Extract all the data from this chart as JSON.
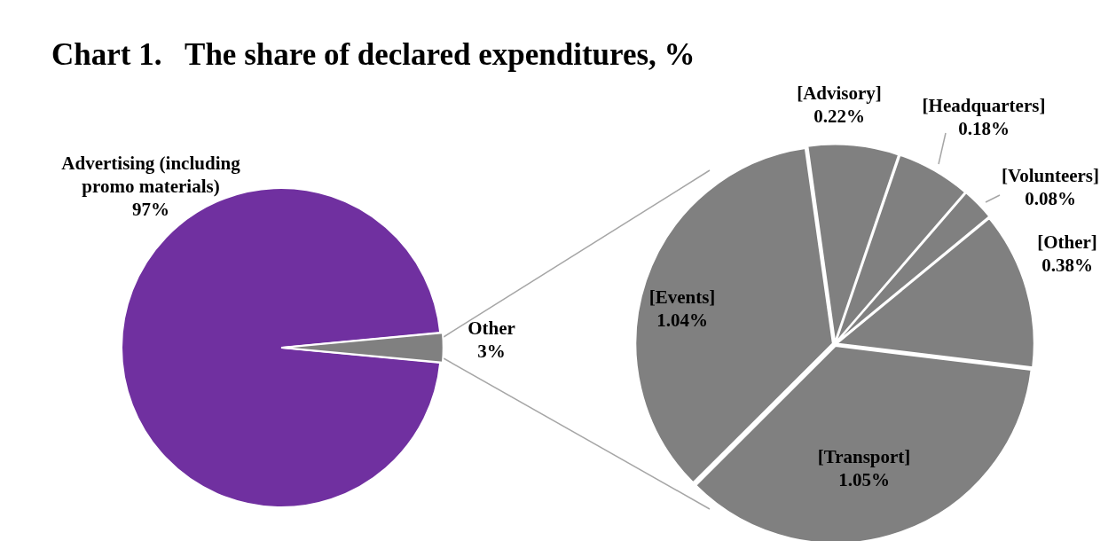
{
  "chart_data": [
    {
      "type": "pie",
      "title": "Chart 1.   The share of declared expenditures, %",
      "categories": [
        "Advertising (including promo materials)",
        "Other"
      ],
      "values": [
        97,
        3
      ],
      "colors": [
        "#7030a0",
        "#808080"
      ],
      "value_labels": [
        "97%",
        "3%"
      ],
      "legend": false
    },
    {
      "type": "pie",
      "categories": [
        "[Advisory]",
        "[Headquarters]",
        "[Volunteers]",
        "[Other]",
        "[Transport]",
        "[Events]"
      ],
      "values": [
        0.22,
        0.18,
        0.08,
        0.38,
        1.05,
        1.04
      ],
      "colors": [
        "#808080",
        "#808080",
        "#808080",
        "#808080",
        "#808080",
        "#808080"
      ],
      "value_labels": [
        "0.22%",
        "0.18%",
        "0.08%",
        "0.38%",
        "1.05%",
        "1.04%"
      ],
      "legend": false
    }
  ]
}
